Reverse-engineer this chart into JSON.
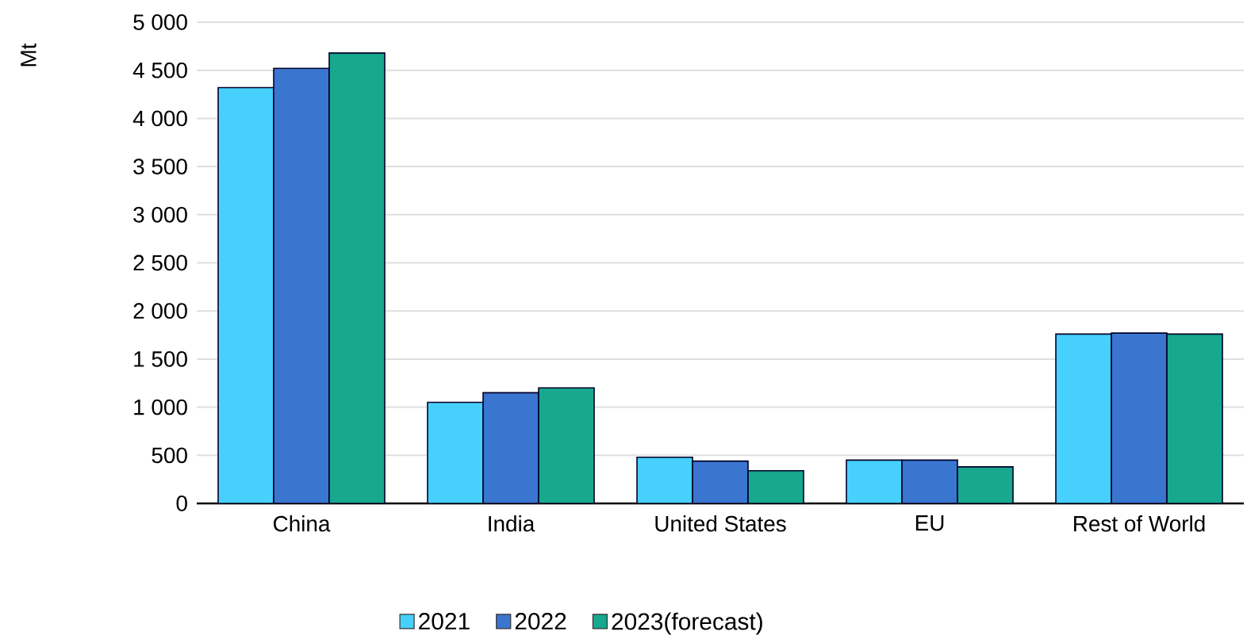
{
  "chart_data": {
    "type": "bar",
    "ylabel": "Mt",
    "categories": [
      "China",
      "India",
      "United States",
      "EU",
      "Rest of World"
    ],
    "series": [
      {
        "name": "2021",
        "color": "#47d0fc",
        "values": [
          4320,
          1050,
          480,
          450,
          1760
        ]
      },
      {
        "name": "2022",
        "color": "#3a75d0",
        "values": [
          4520,
          1150,
          440,
          450,
          1770
        ]
      },
      {
        "name": "2023(forecast)",
        "color": "#17a88f",
        "values": [
          4680,
          1200,
          340,
          380,
          1760
        ]
      }
    ],
    "ylim": [
      0,
      5000
    ],
    "yticks": [
      0,
      500,
      {
        "value": 1000,
        "label": "1 000"
      },
      {
        "value": 1500,
        "label": "1 500"
      },
      {
        "value": 2000,
        "label": "2 000"
      },
      {
        "value": 2500,
        "label": "2 500"
      },
      {
        "value": 3000,
        "label": "3 000"
      },
      {
        "value": 3500,
        "label": "3 500"
      },
      {
        "value": 4000,
        "label": "4 000"
      },
      {
        "value": 4500,
        "label": "4 500"
      },
      {
        "value": 5000,
        "label": "5 000"
      }
    ],
    "grid": "y",
    "legend": "bottom"
  }
}
